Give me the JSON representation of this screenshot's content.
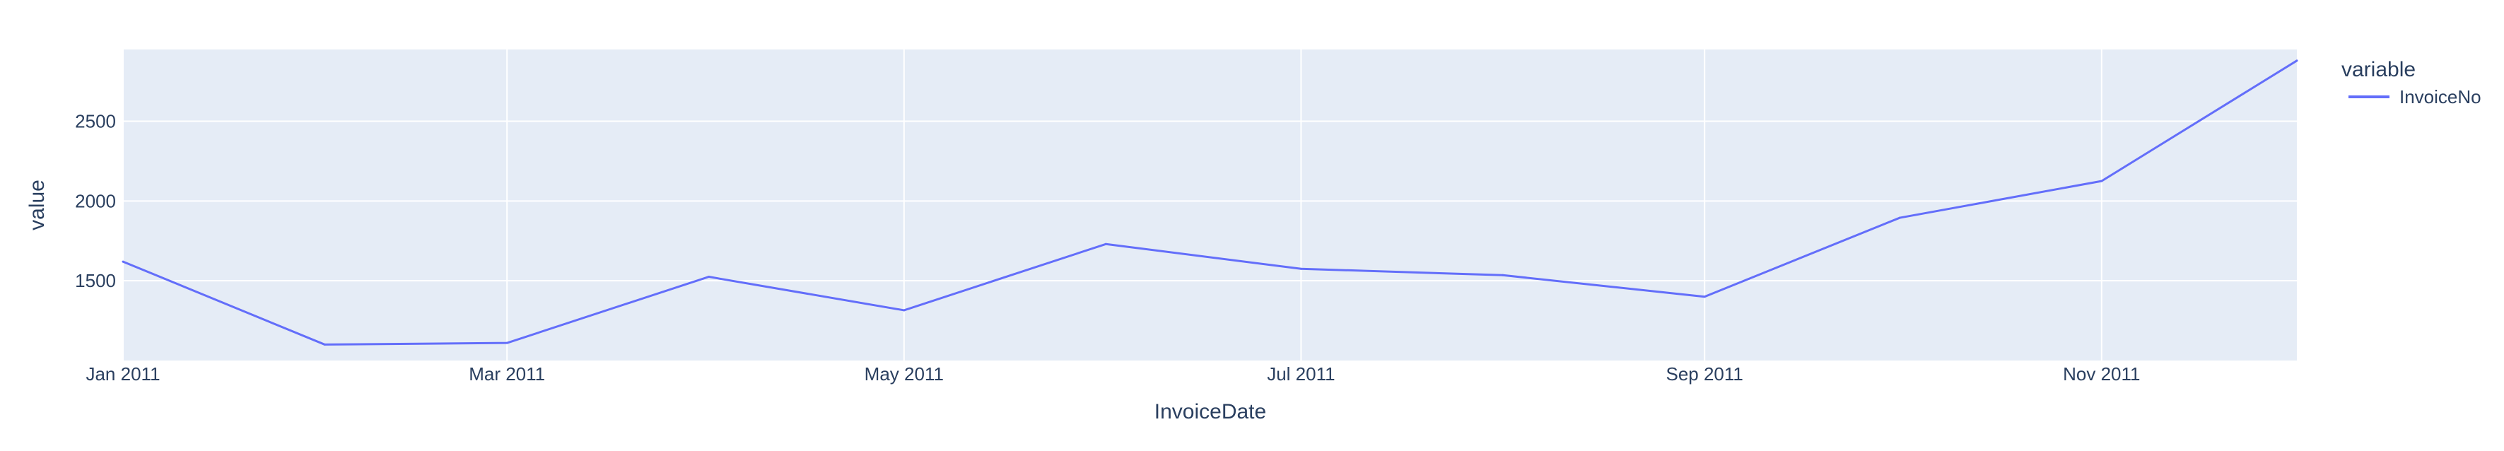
{
  "chart_data": {
    "type": "line",
    "xlabel": "InvoiceDate",
    "ylabel": "value",
    "x": [
      "2011-01-01",
      "2011-02-01",
      "2011-03-01",
      "2011-04-01",
      "2011-05-01",
      "2011-06-01",
      "2011-07-01",
      "2011-08-01",
      "2011-09-01",
      "2011-10-01",
      "2011-11-01",
      "2011-12-01"
    ],
    "x_ticks": [
      {
        "date": "2011-01-01",
        "label": "Jan 2011"
      },
      {
        "date": "2011-03-01",
        "label": "Mar 2011"
      },
      {
        "date": "2011-05-01",
        "label": "May 2011"
      },
      {
        "date": "2011-07-01",
        "label": "Jul 2011"
      },
      {
        "date": "2011-09-01",
        "label": "Sep 2011"
      },
      {
        "date": "2011-11-01",
        "label": "Nov 2011"
      }
    ],
    "y_ticks": [
      1500,
      2000,
      2500
    ],
    "ylim": [
      1000,
      2950
    ],
    "series": [
      {
        "name": "InvoiceNo",
        "color": "#636efa",
        "values": [
          1620,
          1100,
          1110,
          1525,
          1315,
          1730,
          1575,
          1535,
          1400,
          1895,
          2125,
          2880
        ]
      }
    ],
    "legend": {
      "title": "variable",
      "placement": "top-right"
    },
    "grid": true,
    "plot_bg": "#e5ecf6",
    "grid_color": "#ffffff"
  }
}
